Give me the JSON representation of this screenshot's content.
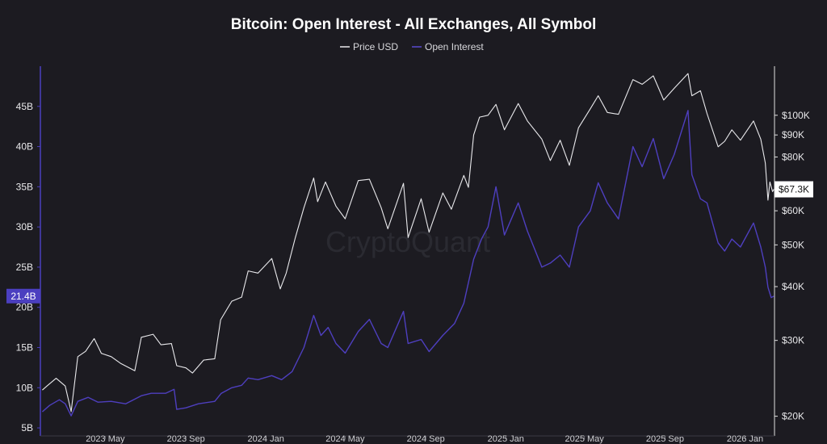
{
  "colors": {
    "background": "#1c1b21",
    "price": "#e9e9ec",
    "open_interest": "#4e3fbf",
    "oi_axis": "#4b3fc0",
    "right_axis": "#e0e0e0",
    "watermark": "#2a2a31"
  },
  "watermark": "CryptoQuant",
  "chart_data": {
    "type": "line",
    "title": "Bitcoin: Open Interest - All Exchanges, All Symbol",
    "legend": {
      "placement": "top-center",
      "entries": [
        "Price USD",
        "Open Interest"
      ]
    },
    "grid": false,
    "x_range": [
      "2023-01-22",
      "2026-02-15"
    ],
    "x_ticks": [
      {
        "date": "2023-05-01",
        "label": "2023 May"
      },
      {
        "date": "2023-09-01",
        "label": "2023 Sep"
      },
      {
        "date": "2024-01-01",
        "label": "2024 Jan"
      },
      {
        "date": "2024-05-01",
        "label": "2024 May"
      },
      {
        "date": "2024-09-01",
        "label": "2024 Sep"
      },
      {
        "date": "2025-01-01",
        "label": "2025 Jan"
      },
      {
        "date": "2025-05-01",
        "label": "2025 May"
      },
      {
        "date": "2025-09-01",
        "label": "2025 Sep"
      },
      {
        "date": "2026-01-01",
        "label": "2026 Jan"
      }
    ],
    "left_axis": {
      "series": "Open Interest",
      "scale": "linear",
      "range": [
        4,
        50
      ],
      "ticks": [
        {
          "value": 5,
          "label": "5B"
        },
        {
          "value": 10,
          "label": "10B"
        },
        {
          "value": 15,
          "label": "15B"
        },
        {
          "value": 20,
          "label": "20B"
        },
        {
          "value": 25,
          "label": "25B"
        },
        {
          "value": 30,
          "label": "30B"
        },
        {
          "value": 35,
          "label": "35B"
        },
        {
          "value": 40,
          "label": "40B"
        },
        {
          "value": 45,
          "label": "45B"
        }
      ],
      "current_badge": "21.4B",
      "current_value": 21.4
    },
    "right_axis": {
      "series": "Price USD",
      "scale": "log",
      "range": [
        18000,
        130000
      ],
      "ticks": [
        {
          "value": 20000,
          "label": "$20K"
        },
        {
          "value": 30000,
          "label": "$30K"
        },
        {
          "value": 40000,
          "label": "$40K"
        },
        {
          "value": 50000,
          "label": "$50K"
        },
        {
          "value": 60000,
          "label": "$60K"
        },
        {
          "value": 80000,
          "label": "$80K"
        },
        {
          "value": 90000,
          "label": "$90K"
        },
        {
          "value": 100000,
          "label": "$100K"
        }
      ],
      "current_badge": "$67.3K",
      "current_value": 67300
    },
    "series": [
      {
        "name": "Price USD",
        "axis": "right",
        "points": [
          [
            "2023-01-25",
            23000
          ],
          [
            "2023-02-01",
            23500
          ],
          [
            "2023-02-15",
            24500
          ],
          [
            "2023-03-01",
            23500
          ],
          [
            "2023-03-10",
            20500
          ],
          [
            "2023-03-20",
            27500
          ],
          [
            "2023-04-01",
            28300
          ],
          [
            "2023-04-14",
            30300
          ],
          [
            "2023-04-25",
            28000
          ],
          [
            "2023-05-10",
            27500
          ],
          [
            "2023-05-25",
            26500
          ],
          [
            "2023-06-15",
            25500
          ],
          [
            "2023-06-25",
            30500
          ],
          [
            "2023-07-13",
            31000
          ],
          [
            "2023-07-25",
            29300
          ],
          [
            "2023-08-10",
            29500
          ],
          [
            "2023-08-18",
            26200
          ],
          [
            "2023-09-01",
            25900
          ],
          [
            "2023-09-11",
            25200
          ],
          [
            "2023-09-28",
            27000
          ],
          [
            "2023-10-15",
            27200
          ],
          [
            "2023-10-24",
            33500
          ],
          [
            "2023-11-10",
            37000
          ],
          [
            "2023-11-25",
            37800
          ],
          [
            "2023-12-05",
            43500
          ],
          [
            "2023-12-20",
            43000
          ],
          [
            "2024-01-10",
            46500
          ],
          [
            "2024-01-23",
            39500
          ],
          [
            "2024-02-01",
            43000
          ],
          [
            "2024-02-15",
            52000
          ],
          [
            "2024-02-28",
            61000
          ],
          [
            "2024-03-14",
            71500
          ],
          [
            "2024-03-20",
            63000
          ],
          [
            "2024-04-01",
            70000
          ],
          [
            "2024-04-17",
            61500
          ],
          [
            "2024-05-01",
            57500
          ],
          [
            "2024-05-21",
            70500
          ],
          [
            "2024-06-07",
            71000
          ],
          [
            "2024-06-25",
            61000
          ],
          [
            "2024-07-05",
            54500
          ],
          [
            "2024-07-29",
            69500
          ],
          [
            "2024-08-05",
            52000
          ],
          [
            "2024-08-25",
            64000
          ],
          [
            "2024-09-06",
            53500
          ],
          [
            "2024-09-27",
            66000
          ],
          [
            "2024-10-10",
            60500
          ],
          [
            "2024-10-29",
            72500
          ],
          [
            "2024-11-05",
            68000
          ],
          [
            "2024-11-13",
            90000
          ],
          [
            "2024-11-22",
            99000
          ],
          [
            "2024-12-05",
            100000
          ],
          [
            "2024-12-17",
            106000
          ],
          [
            "2024-12-30",
            92500
          ],
          [
            "2025-01-20",
            106500
          ],
          [
            "2025-02-03",
            97000
          ],
          [
            "2025-02-25",
            88000
          ],
          [
            "2025-03-10",
            78500
          ],
          [
            "2025-03-25",
            87500
          ],
          [
            "2025-04-08",
            76500
          ],
          [
            "2025-04-22",
            93500
          ],
          [
            "2025-05-10",
            103500
          ],
          [
            "2025-05-22",
            111000
          ],
          [
            "2025-06-05",
            101500
          ],
          [
            "2025-06-22",
            100500
          ],
          [
            "2025-07-14",
            121000
          ],
          [
            "2025-07-28",
            118000
          ],
          [
            "2025-08-14",
            123500
          ],
          [
            "2025-08-30",
            108500
          ],
          [
            "2025-09-15",
            115500
          ],
          [
            "2025-10-06",
            125000
          ],
          [
            "2025-10-12",
            111000
          ],
          [
            "2025-10-25",
            114000
          ],
          [
            "2025-11-04",
            101000
          ],
          [
            "2025-11-21",
            84500
          ],
          [
            "2025-12-01",
            87000
          ],
          [
            "2025-12-12",
            92500
          ],
          [
            "2025-12-25",
            87500
          ],
          [
            "2026-01-14",
            97000
          ],
          [
            "2026-01-25",
            88000
          ],
          [
            "2026-02-01",
            77500
          ],
          [
            "2026-02-05",
            63500
          ],
          [
            "2026-02-08",
            70000
          ],
          [
            "2026-02-12",
            66500
          ],
          [
            "2026-02-14",
            67300
          ]
        ]
      },
      {
        "name": "Open Interest",
        "axis": "left",
        "points": [
          [
            "2023-01-25",
            7.0
          ],
          [
            "2023-02-05",
            7.8
          ],
          [
            "2023-02-20",
            8.5
          ],
          [
            "2023-03-01",
            8.0
          ],
          [
            "2023-03-10",
            6.5
          ],
          [
            "2023-03-20",
            8.3
          ],
          [
            "2023-04-05",
            8.8
          ],
          [
            "2023-04-20",
            8.2
          ],
          [
            "2023-05-10",
            8.3
          ],
          [
            "2023-06-01",
            8.0
          ],
          [
            "2023-06-25",
            9.0
          ],
          [
            "2023-07-10",
            9.3
          ],
          [
            "2023-08-01",
            9.3
          ],
          [
            "2023-08-14",
            9.8
          ],
          [
            "2023-08-18",
            7.3
          ],
          [
            "2023-09-01",
            7.5
          ],
          [
            "2023-09-20",
            8.0
          ],
          [
            "2023-10-15",
            8.3
          ],
          [
            "2023-10-25",
            9.3
          ],
          [
            "2023-11-10",
            10.0
          ],
          [
            "2023-11-25",
            10.3
          ],
          [
            "2023-12-05",
            11.2
          ],
          [
            "2023-12-20",
            11.0
          ],
          [
            "2024-01-10",
            11.5
          ],
          [
            "2024-01-25",
            11.0
          ],
          [
            "2024-02-10",
            12.0
          ],
          [
            "2024-02-28",
            15.0
          ],
          [
            "2024-03-14",
            19.0
          ],
          [
            "2024-03-25",
            16.5
          ],
          [
            "2024-04-05",
            17.5
          ],
          [
            "2024-04-17",
            15.5
          ],
          [
            "2024-05-01",
            14.3
          ],
          [
            "2024-05-21",
            17.0
          ],
          [
            "2024-06-07",
            18.5
          ],
          [
            "2024-06-25",
            15.5
          ],
          [
            "2024-07-05",
            15.0
          ],
          [
            "2024-07-29",
            19.5
          ],
          [
            "2024-08-05",
            15.5
          ],
          [
            "2024-08-25",
            16.0
          ],
          [
            "2024-09-06",
            14.5
          ],
          [
            "2024-09-27",
            16.5
          ],
          [
            "2024-10-15",
            18.0
          ],
          [
            "2024-10-29",
            20.5
          ],
          [
            "2024-11-13",
            26.0
          ],
          [
            "2024-11-25",
            28.5
          ],
          [
            "2024-12-05",
            30.0
          ],
          [
            "2024-12-17",
            35.0
          ],
          [
            "2024-12-30",
            29.0
          ],
          [
            "2025-01-20",
            33.0
          ],
          [
            "2025-02-03",
            29.5
          ],
          [
            "2025-02-25",
            25.0
          ],
          [
            "2025-03-10",
            25.5
          ],
          [
            "2025-03-25",
            26.5
          ],
          [
            "2025-04-08",
            25.0
          ],
          [
            "2025-04-22",
            30.0
          ],
          [
            "2025-05-10",
            32.0
          ],
          [
            "2025-05-22",
            35.5
          ],
          [
            "2025-06-05",
            33.0
          ],
          [
            "2025-06-22",
            31.0
          ],
          [
            "2025-07-14",
            40.0
          ],
          [
            "2025-07-28",
            37.5
          ],
          [
            "2025-08-14",
            41.0
          ],
          [
            "2025-08-30",
            36.0
          ],
          [
            "2025-09-15",
            39.0
          ],
          [
            "2025-10-06",
            44.5
          ],
          [
            "2025-10-12",
            36.5
          ],
          [
            "2025-10-25",
            33.5
          ],
          [
            "2025-11-04",
            33.0
          ],
          [
            "2025-11-21",
            28.0
          ],
          [
            "2025-12-01",
            27.0
          ],
          [
            "2025-12-12",
            28.5
          ],
          [
            "2025-12-25",
            27.5
          ],
          [
            "2026-01-14",
            30.5
          ],
          [
            "2026-01-25",
            27.5
          ],
          [
            "2026-02-01",
            25.0
          ],
          [
            "2026-02-05",
            22.5
          ],
          [
            "2026-02-10",
            21.2
          ],
          [
            "2026-02-14",
            21.4
          ]
        ]
      }
    ]
  }
}
